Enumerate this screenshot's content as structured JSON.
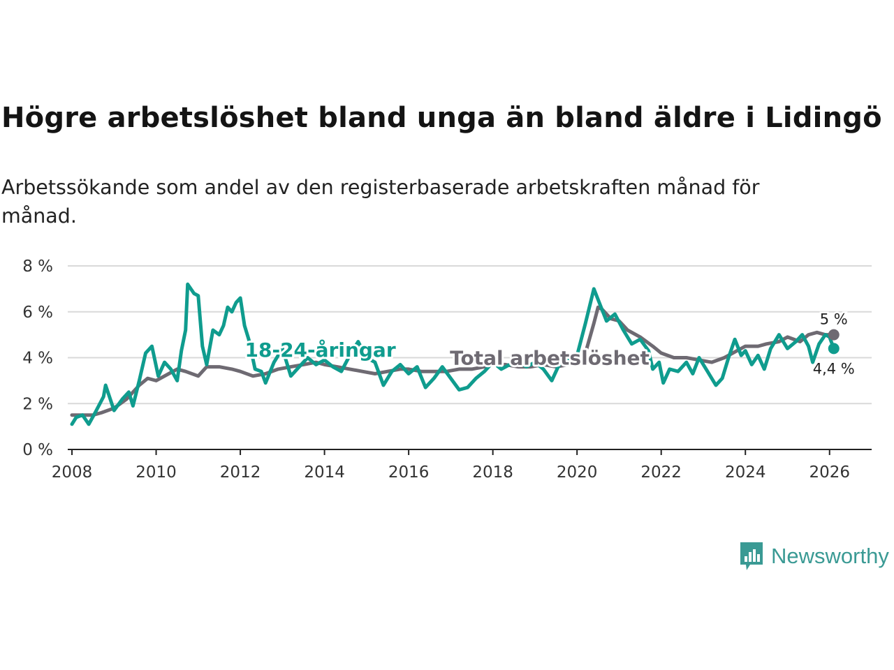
{
  "title": "Högre arbetslöshet bland unga än bland äldre i Lidingö",
  "subtitle": "Arbetssökande som andel av den registerbaserade arbetskraften månad för månad.",
  "brand": {
    "name": "Newsworthy",
    "color": "#3a9a94"
  },
  "chart_data": {
    "type": "line",
    "ylim": [
      0,
      8
    ],
    "xlim": [
      2007.9,
      2027.0
    ],
    "yticks": [
      {
        "v": 0,
        "label": "0 %"
      },
      {
        "v": 2,
        "label": "2 %"
      },
      {
        "v": 4,
        "label": "4 %"
      },
      {
        "v": 6,
        "label": "6 %"
      },
      {
        "v": 8,
        "label": "8 %"
      }
    ],
    "xticks": [
      {
        "v": 2008,
        "label": "2008"
      },
      {
        "v": 2010,
        "label": "2010"
      },
      {
        "v": 2012,
        "label": "2012"
      },
      {
        "v": 2014,
        "label": "2014"
      },
      {
        "v": 2016,
        "label": "2016"
      },
      {
        "v": 2018,
        "label": "2018"
      },
      {
        "v": 2020,
        "label": "2020"
      },
      {
        "v": 2022,
        "label": "2022"
      },
      {
        "v": 2024,
        "label": "2024"
      },
      {
        "v": 2026,
        "label": "2026"
      }
    ],
    "grid": true,
    "series": [
      {
        "name": "Total arbetslöshet",
        "color": "#6e6a72",
        "end_label": "5 %",
        "points": [
          [
            2008.0,
            1.5
          ],
          [
            2008.3,
            1.5
          ],
          [
            2008.5,
            1.5
          ],
          [
            2008.7,
            1.6
          ],
          [
            2009.0,
            1.8
          ],
          [
            2009.3,
            2.2
          ],
          [
            2009.6,
            2.8
          ],
          [
            2009.8,
            3.1
          ],
          [
            2010.0,
            3.0
          ],
          [
            2010.3,
            3.3
          ],
          [
            2010.5,
            3.5
          ],
          [
            2010.7,
            3.4
          ],
          [
            2011.0,
            3.2
          ],
          [
            2011.2,
            3.6
          ],
          [
            2011.5,
            3.6
          ],
          [
            2011.8,
            3.5
          ],
          [
            2012.0,
            3.4
          ],
          [
            2012.3,
            3.2
          ],
          [
            2012.6,
            3.3
          ],
          [
            2012.9,
            3.5
          ],
          [
            2013.2,
            3.6
          ],
          [
            2013.5,
            3.7
          ],
          [
            2013.8,
            3.8
          ],
          [
            2014.0,
            3.7
          ],
          [
            2014.3,
            3.6
          ],
          [
            2014.6,
            3.5
          ],
          [
            2014.9,
            3.4
          ],
          [
            2015.2,
            3.3
          ],
          [
            2015.5,
            3.4
          ],
          [
            2015.8,
            3.5
          ],
          [
            2016.0,
            3.5
          ],
          [
            2016.3,
            3.4
          ],
          [
            2016.6,
            3.4
          ],
          [
            2016.9,
            3.4
          ],
          [
            2017.2,
            3.5
          ],
          [
            2017.5,
            3.5
          ],
          [
            2017.8,
            3.6
          ],
          [
            2018.0,
            3.7
          ],
          [
            2018.3,
            3.7
          ],
          [
            2018.6,
            3.6
          ],
          [
            2018.9,
            3.6
          ],
          [
            2019.2,
            3.7
          ],
          [
            2019.5,
            3.6
          ],
          [
            2019.8,
            3.7
          ],
          [
            2020.0,
            3.8
          ],
          [
            2020.2,
            4.2
          ],
          [
            2020.4,
            5.5
          ],
          [
            2020.5,
            6.2
          ],
          [
            2020.6,
            6.1
          ],
          [
            2020.8,
            5.7
          ],
          [
            2021.0,
            5.6
          ],
          [
            2021.2,
            5.2
          ],
          [
            2021.5,
            4.9
          ],
          [
            2021.8,
            4.5
          ],
          [
            2022.0,
            4.2
          ],
          [
            2022.3,
            4.0
          ],
          [
            2022.6,
            4.0
          ],
          [
            2022.9,
            3.9
          ],
          [
            2023.2,
            3.8
          ],
          [
            2023.5,
            4.0
          ],
          [
            2023.8,
            4.3
          ],
          [
            2024.0,
            4.5
          ],
          [
            2024.3,
            4.5
          ],
          [
            2024.5,
            4.6
          ],
          [
            2024.8,
            4.7
          ],
          [
            2025.0,
            4.9
          ],
          [
            2025.3,
            4.7
          ],
          [
            2025.5,
            5.0
          ],
          [
            2025.7,
            5.1
          ],
          [
            2025.9,
            5.0
          ],
          [
            2026.1,
            5.0
          ]
        ]
      },
      {
        "name": "18-24-åringar",
        "color": "#0f9c8e",
        "end_label": "4,4 %",
        "points": [
          [
            2008.0,
            1.1
          ],
          [
            2008.1,
            1.4
          ],
          [
            2008.25,
            1.5
          ],
          [
            2008.4,
            1.1
          ],
          [
            2008.55,
            1.6
          ],
          [
            2008.75,
            2.3
          ],
          [
            2008.8,
            2.8
          ],
          [
            2009.0,
            1.7
          ],
          [
            2009.2,
            2.2
          ],
          [
            2009.35,
            2.5
          ],
          [
            2009.45,
            1.9
          ],
          [
            2009.6,
            3.0
          ],
          [
            2009.75,
            4.2
          ],
          [
            2009.9,
            4.5
          ],
          [
            2010.05,
            3.2
          ],
          [
            2010.2,
            3.8
          ],
          [
            2010.35,
            3.5
          ],
          [
            2010.5,
            3.0
          ],
          [
            2010.6,
            4.3
          ],
          [
            2010.7,
            5.2
          ],
          [
            2010.75,
            7.2
          ],
          [
            2010.9,
            6.8
          ],
          [
            2011.0,
            6.7
          ],
          [
            2011.1,
            4.5
          ],
          [
            2011.2,
            3.7
          ],
          [
            2011.35,
            5.2
          ],
          [
            2011.5,
            5.0
          ],
          [
            2011.6,
            5.4
          ],
          [
            2011.7,
            6.2
          ],
          [
            2011.8,
            6.0
          ],
          [
            2011.9,
            6.4
          ],
          [
            2012.0,
            6.6
          ],
          [
            2012.1,
            5.4
          ],
          [
            2012.2,
            4.8
          ],
          [
            2012.35,
            3.5
          ],
          [
            2012.5,
            3.4
          ],
          [
            2012.6,
            2.9
          ],
          [
            2012.8,
            3.8
          ],
          [
            2013.0,
            4.4
          ],
          [
            2013.2,
            3.2
          ],
          [
            2013.4,
            3.6
          ],
          [
            2013.6,
            4.0
          ],
          [
            2013.8,
            3.7
          ],
          [
            2014.0,
            3.9
          ],
          [
            2014.2,
            3.6
          ],
          [
            2014.4,
            3.4
          ],
          [
            2014.6,
            4.1
          ],
          [
            2014.8,
            4.7
          ],
          [
            2015.0,
            4.0
          ],
          [
            2015.2,
            3.8
          ],
          [
            2015.4,
            2.8
          ],
          [
            2015.6,
            3.4
          ],
          [
            2015.8,
            3.7
          ],
          [
            2016.0,
            3.3
          ],
          [
            2016.2,
            3.6
          ],
          [
            2016.4,
            2.7
          ],
          [
            2016.6,
            3.1
          ],
          [
            2016.8,
            3.6
          ],
          [
            2017.0,
            3.1
          ],
          [
            2017.2,
            2.6
          ],
          [
            2017.4,
            2.7
          ],
          [
            2017.6,
            3.1
          ],
          [
            2017.8,
            3.4
          ],
          [
            2018.0,
            3.8
          ],
          [
            2018.2,
            3.5
          ],
          [
            2018.4,
            3.7
          ],
          [
            2018.6,
            3.8
          ],
          [
            2018.8,
            3.6
          ],
          [
            2019.0,
            3.8
          ],
          [
            2019.2,
            3.5
          ],
          [
            2019.4,
            3.0
          ],
          [
            2019.6,
            3.8
          ],
          [
            2019.8,
            3.9
          ],
          [
            2020.0,
            4.1
          ],
          [
            2020.2,
            5.5
          ],
          [
            2020.4,
            7.0
          ],
          [
            2020.55,
            6.3
          ],
          [
            2020.7,
            5.6
          ],
          [
            2020.9,
            5.9
          ],
          [
            2021.1,
            5.2
          ],
          [
            2021.3,
            4.6
          ],
          [
            2021.5,
            4.8
          ],
          [
            2021.7,
            4.3
          ],
          [
            2021.8,
            3.5
          ],
          [
            2021.95,
            3.8
          ],
          [
            2022.05,
            2.9
          ],
          [
            2022.2,
            3.5
          ],
          [
            2022.4,
            3.4
          ],
          [
            2022.6,
            3.8
          ],
          [
            2022.75,
            3.3
          ],
          [
            2022.9,
            4.0
          ],
          [
            2023.1,
            3.4
          ],
          [
            2023.3,
            2.8
          ],
          [
            2023.45,
            3.1
          ],
          [
            2023.6,
            4.0
          ],
          [
            2023.75,
            4.8
          ],
          [
            2023.9,
            4.1
          ],
          [
            2024.0,
            4.3
          ],
          [
            2024.15,
            3.7
          ],
          [
            2024.3,
            4.1
          ],
          [
            2024.45,
            3.5
          ],
          [
            2024.6,
            4.4
          ],
          [
            2024.8,
            5.0
          ],
          [
            2025.0,
            4.4
          ],
          [
            2025.2,
            4.7
          ],
          [
            2025.35,
            5.0
          ],
          [
            2025.5,
            4.5
          ],
          [
            2025.6,
            3.8
          ],
          [
            2025.75,
            4.6
          ],
          [
            2025.9,
            5.0
          ],
          [
            2026.0,
            4.9
          ],
          [
            2026.1,
            4.4
          ]
        ]
      }
    ],
    "series_labels": [
      {
        "text": "18-24-åringar",
        "series": 1,
        "x": 2013.9,
        "y": 4.35
      },
      {
        "text": "Total arbetslöshet",
        "series": 0,
        "x": 2019.35,
        "y": 4.0
      }
    ]
  }
}
